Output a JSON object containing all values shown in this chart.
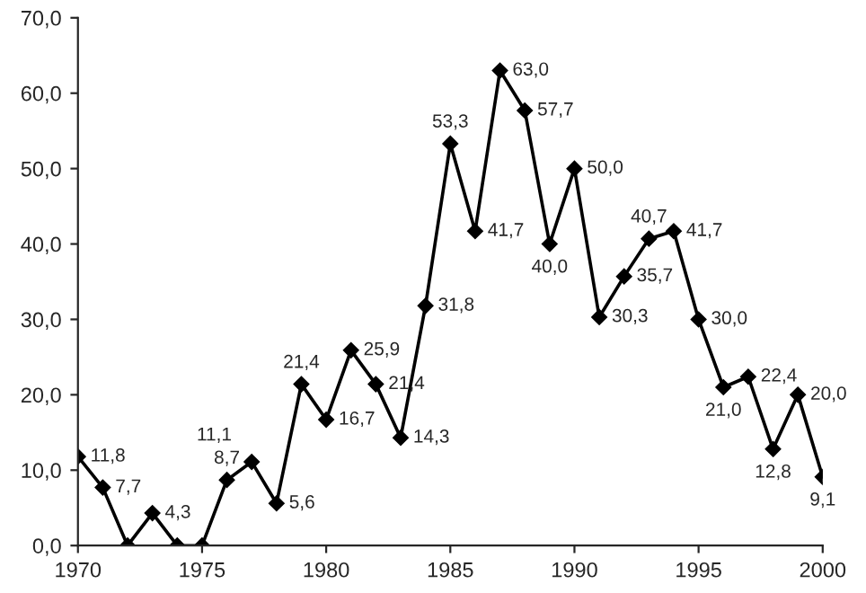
{
  "chart_data": {
    "type": "line",
    "x": [
      1970,
      1971,
      1972,
      1973,
      1974,
      1975,
      1976,
      1977,
      1978,
      1979,
      1980,
      1981,
      1982,
      1983,
      1984,
      1985,
      1986,
      1987,
      1988,
      1989,
      1990,
      1991,
      1992,
      1993,
      1994,
      1995,
      1996,
      1997,
      1998,
      1999,
      2000
    ],
    "series": [
      {
        "color": "#000000",
        "values": [
          11.8,
          7.7,
          0,
          4.3,
          0,
          0,
          8.7,
          11.1,
          5.6,
          21.4,
          16.7,
          25.9,
          21.4,
          14.3,
          31.8,
          53.3,
          41.7,
          63.0,
          57.7,
          40.0,
          50.0,
          30.3,
          35.7,
          40.7,
          41.7,
          30.0,
          21.0,
          22.4,
          12.8,
          20.0,
          9.1
        ],
        "value_labels": [
          "11,8",
          "7,7",
          null,
          "4,3",
          null,
          null,
          "8,7",
          "11,1",
          "5,6",
          "21,4",
          "16,7",
          "25,9",
          "21,4",
          "14,3",
          "31,8",
          "53,3",
          "41,7",
          "63,0",
          "57,7",
          "40,0",
          "50,0",
          "30,3",
          "35,7",
          "40,7",
          "41,7",
          "30,0",
          "21,0",
          "22,4",
          "12,8",
          "20,0",
          "9,1"
        ]
      }
    ],
    "xlim": [
      1970,
      2000
    ],
    "xticks": [
      1970,
      1975,
      1980,
      1985,
      1990,
      1995,
      2000
    ],
    "ylim": [
      0,
      70
    ],
    "yticks": [
      {
        "value": 0,
        "label": "0,0"
      },
      {
        "value": 10,
        "label": "10,0"
      },
      {
        "value": 20,
        "label": "20,0"
      },
      {
        "value": 30,
        "label": "30,0"
      },
      {
        "value": 40,
        "label": "40,0"
      },
      {
        "value": 50,
        "label": "50,0"
      },
      {
        "value": 60,
        "label": "60,0"
      },
      {
        "value": 70,
        "label": "70,0"
      }
    ],
    "grid": false,
    "legend": false,
    "marker": "diamond",
    "line_style": "solid"
  }
}
